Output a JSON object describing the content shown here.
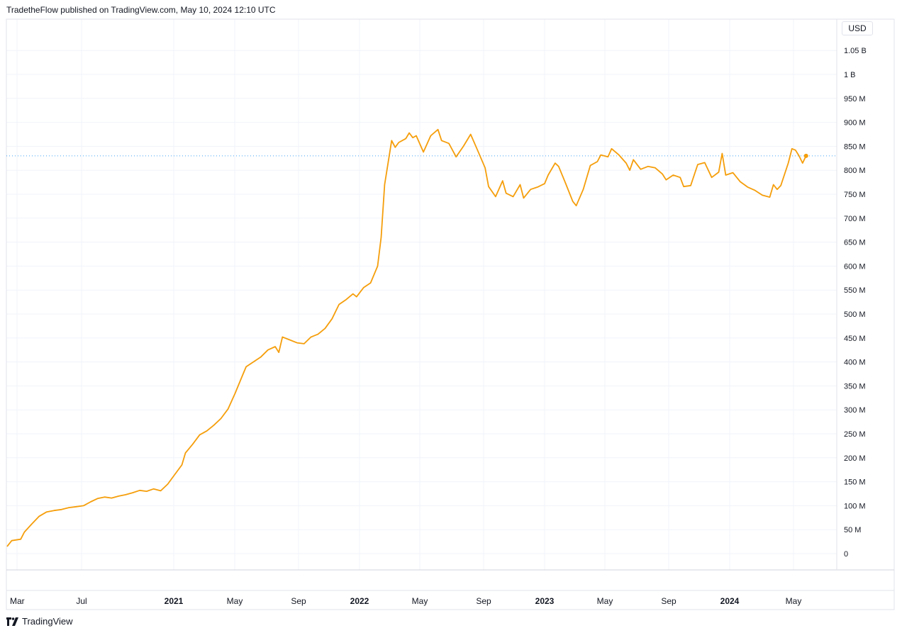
{
  "header": {
    "publisher_text": "TradetheFlow published on TradingView.com, May 10, 2024 12:10 UTC"
  },
  "currency_button": {
    "label": "USD"
  },
  "footer": {
    "brand": "TradingView",
    "logo_icon": "tradingview-logo-icon"
  },
  "chart_data": {
    "type": "line",
    "title": "",
    "xlabel": "",
    "ylabel": "",
    "x_range": [
      "2020-02-15",
      "2024-05-10"
    ],
    "ylim": [
      -20000000,
      1080000000
    ],
    "grid": true,
    "legend": "none",
    "line_color": "#f59e0b",
    "last_value_line": {
      "value": 830000000,
      "color": "#42a5f5",
      "style": "dotted"
    },
    "y_ticks": [
      {
        "value": 0,
        "label": "0"
      },
      {
        "value": 50000000,
        "label": "50 M"
      },
      {
        "value": 100000000,
        "label": "100 M"
      },
      {
        "value": 150000000,
        "label": "150 M"
      },
      {
        "value": 200000000,
        "label": "200 M"
      },
      {
        "value": 250000000,
        "label": "250 M"
      },
      {
        "value": 300000000,
        "label": "300 M"
      },
      {
        "value": 350000000,
        "label": "350 M"
      },
      {
        "value": 400000000,
        "label": "400 M"
      },
      {
        "value": 450000000,
        "label": "450 M"
      },
      {
        "value": 500000000,
        "label": "500 M"
      },
      {
        "value": 550000000,
        "label": "550 M"
      },
      {
        "value": 600000000,
        "label": "600 M"
      },
      {
        "value": 650000000,
        "label": "650 M"
      },
      {
        "value": 700000000,
        "label": "700 M"
      },
      {
        "value": 750000000,
        "label": "750 M"
      },
      {
        "value": 800000000,
        "label": "800 M"
      },
      {
        "value": 850000000,
        "label": "850 M"
      },
      {
        "value": 900000000,
        "label": "900 M"
      },
      {
        "value": 950000000,
        "label": "950 M"
      },
      {
        "value": 1000000000,
        "label": "1 B"
      },
      {
        "value": 1050000000,
        "label": "1.05 B"
      }
    ],
    "x_ticks": [
      {
        "date": "2020-03-01",
        "label": "Mar",
        "bold": false
      },
      {
        "date": "2020-07-01",
        "label": "Jul",
        "bold": false
      },
      {
        "date": "2021-01-01",
        "label": "2021",
        "bold": true
      },
      {
        "date": "2021-05-01",
        "label": "May",
        "bold": false
      },
      {
        "date": "2021-09-01",
        "label": "Sep",
        "bold": false
      },
      {
        "date": "2022-01-01",
        "label": "2022",
        "bold": true
      },
      {
        "date": "2022-05-01",
        "label": "May",
        "bold": false
      },
      {
        "date": "2022-09-01",
        "label": "Sep",
        "bold": false
      },
      {
        "date": "2023-01-01",
        "label": "2023",
        "bold": true
      },
      {
        "date": "2023-05-01",
        "label": "May",
        "bold": false
      },
      {
        "date": "2023-09-01",
        "label": "Sep",
        "bold": false
      },
      {
        "date": "2024-01-01",
        "label": "2024",
        "bold": true
      },
      {
        "date": "2024-05-01",
        "label": "May",
        "bold": false
      }
    ],
    "series": [
      {
        "points": [
          [
            "2020-02-15",
            15000000
          ],
          [
            "2020-02-22",
            27000000
          ],
          [
            "2020-03-08",
            30000000
          ],
          [
            "2020-03-15",
            45000000
          ],
          [
            "2020-03-29",
            62000000
          ],
          [
            "2020-04-12",
            78000000
          ],
          [
            "2020-04-26",
            87000000
          ],
          [
            "2020-05-10",
            90000000
          ],
          [
            "2020-05-24",
            92000000
          ],
          [
            "2020-06-07",
            96000000
          ],
          [
            "2020-06-21",
            98000000
          ],
          [
            "2020-07-05",
            100000000
          ],
          [
            "2020-07-19",
            108000000
          ],
          [
            "2020-08-02",
            115000000
          ],
          [
            "2020-08-16",
            118000000
          ],
          [
            "2020-08-30",
            116000000
          ],
          [
            "2020-09-13",
            120000000
          ],
          [
            "2020-09-27",
            123000000
          ],
          [
            "2020-10-11",
            127000000
          ],
          [
            "2020-10-25",
            132000000
          ],
          [
            "2020-11-08",
            130000000
          ],
          [
            "2020-11-22",
            135000000
          ],
          [
            "2020-12-06",
            131000000
          ],
          [
            "2020-12-20",
            145000000
          ],
          [
            "2021-01-03",
            165000000
          ],
          [
            "2021-01-17",
            185000000
          ],
          [
            "2021-01-24",
            210000000
          ],
          [
            "2021-02-07",
            228000000
          ],
          [
            "2021-02-21",
            248000000
          ],
          [
            "2021-03-07",
            256000000
          ],
          [
            "2021-03-21",
            268000000
          ],
          [
            "2021-04-04",
            282000000
          ],
          [
            "2021-04-18",
            302000000
          ],
          [
            "2021-05-02",
            335000000
          ],
          [
            "2021-05-16",
            372000000
          ],
          [
            "2021-05-23",
            390000000
          ],
          [
            "2021-06-06",
            400000000
          ],
          [
            "2021-06-20",
            410000000
          ],
          [
            "2021-07-04",
            425000000
          ],
          [
            "2021-07-18",
            432000000
          ],
          [
            "2021-07-25",
            420000000
          ],
          [
            "2021-08-01",
            452000000
          ],
          [
            "2021-08-15",
            446000000
          ],
          [
            "2021-08-29",
            440000000
          ],
          [
            "2021-09-12",
            438000000
          ],
          [
            "2021-09-26",
            452000000
          ],
          [
            "2021-10-10",
            458000000
          ],
          [
            "2021-10-24",
            470000000
          ],
          [
            "2021-11-07",
            490000000
          ],
          [
            "2021-11-21",
            520000000
          ],
          [
            "2021-12-05",
            530000000
          ],
          [
            "2021-12-19",
            542000000
          ],
          [
            "2021-12-26",
            536000000
          ],
          [
            "2022-01-09",
            555000000
          ],
          [
            "2022-01-23",
            565000000
          ],
          [
            "2022-02-06",
            600000000
          ],
          [
            "2022-02-13",
            660000000
          ],
          [
            "2022-02-20",
            770000000
          ],
          [
            "2022-03-06",
            862000000
          ],
          [
            "2022-03-13",
            848000000
          ],
          [
            "2022-03-20",
            858000000
          ],
          [
            "2022-04-03",
            866000000
          ],
          [
            "2022-04-10",
            878000000
          ],
          [
            "2022-04-17",
            868000000
          ],
          [
            "2022-04-24",
            872000000
          ],
          [
            "2022-05-08",
            838000000
          ],
          [
            "2022-05-22",
            872000000
          ],
          [
            "2022-06-05",
            885000000
          ],
          [
            "2022-06-12",
            862000000
          ],
          [
            "2022-06-26",
            856000000
          ],
          [
            "2022-07-10",
            828000000
          ],
          [
            "2022-07-24",
            850000000
          ],
          [
            "2022-08-07",
            875000000
          ],
          [
            "2022-08-21",
            840000000
          ],
          [
            "2022-09-04",
            805000000
          ],
          [
            "2022-09-11",
            766000000
          ],
          [
            "2022-09-25",
            745000000
          ],
          [
            "2022-10-09",
            778000000
          ],
          [
            "2022-10-16",
            752000000
          ],
          [
            "2022-10-30",
            745000000
          ],
          [
            "2022-11-13",
            770000000
          ],
          [
            "2022-11-20",
            742000000
          ],
          [
            "2022-12-04",
            760000000
          ],
          [
            "2022-12-18",
            765000000
          ],
          [
            "2023-01-01",
            772000000
          ],
          [
            "2023-01-08",
            790000000
          ],
          [
            "2023-01-22",
            815000000
          ],
          [
            "2023-01-29",
            808000000
          ],
          [
            "2023-02-12",
            772000000
          ],
          [
            "2023-02-26",
            735000000
          ],
          [
            "2023-03-05",
            726000000
          ],
          [
            "2023-03-19",
            760000000
          ],
          [
            "2023-04-02",
            810000000
          ],
          [
            "2023-04-16",
            818000000
          ],
          [
            "2023-04-23",
            832000000
          ],
          [
            "2023-05-07",
            828000000
          ],
          [
            "2023-05-14",
            845000000
          ],
          [
            "2023-05-28",
            832000000
          ],
          [
            "2023-06-11",
            815000000
          ],
          [
            "2023-06-18",
            800000000
          ],
          [
            "2023-06-25",
            822000000
          ],
          [
            "2023-07-09",
            802000000
          ],
          [
            "2023-07-23",
            808000000
          ],
          [
            "2023-08-06",
            805000000
          ],
          [
            "2023-08-20",
            792000000
          ],
          [
            "2023-08-27",
            780000000
          ],
          [
            "2023-09-10",
            790000000
          ],
          [
            "2023-09-24",
            785000000
          ],
          [
            "2023-10-01",
            766000000
          ],
          [
            "2023-10-15",
            768000000
          ],
          [
            "2023-10-29",
            812000000
          ],
          [
            "2023-11-12",
            816000000
          ],
          [
            "2023-11-26",
            785000000
          ],
          [
            "2023-12-10",
            796000000
          ],
          [
            "2023-12-17",
            835000000
          ],
          [
            "2023-12-24",
            790000000
          ],
          [
            "2024-01-07",
            795000000
          ],
          [
            "2024-01-21",
            776000000
          ],
          [
            "2024-02-04",
            765000000
          ],
          [
            "2024-02-18",
            758000000
          ],
          [
            "2024-03-03",
            748000000
          ],
          [
            "2024-03-17",
            744000000
          ],
          [
            "2024-03-24",
            770000000
          ],
          [
            "2024-03-31",
            760000000
          ],
          [
            "2024-04-07",
            768000000
          ],
          [
            "2024-04-21",
            815000000
          ],
          [
            "2024-04-28",
            845000000
          ],
          [
            "2024-05-05",
            842000000
          ],
          [
            "2024-05-12",
            830000000
          ],
          [
            "2024-05-19",
            815000000
          ],
          [
            "2024-05-26",
            830000000
          ]
        ]
      }
    ]
  }
}
